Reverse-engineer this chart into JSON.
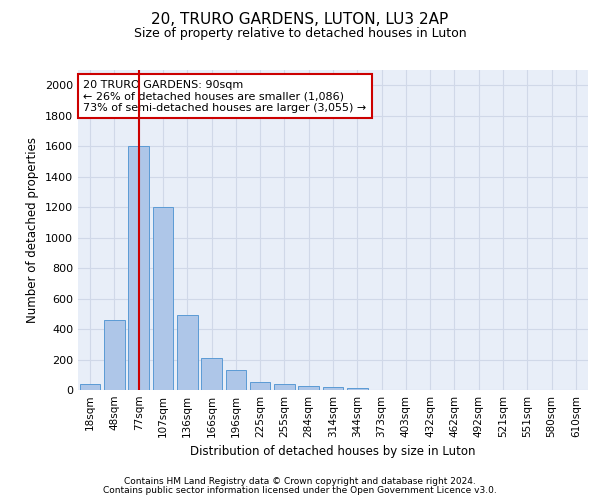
{
  "title": "20, TRURO GARDENS, LUTON, LU3 2AP",
  "subtitle": "Size of property relative to detached houses in Luton",
  "xlabel": "Distribution of detached houses by size in Luton",
  "ylabel": "Number of detached properties",
  "bar_labels": [
    "18sqm",
    "48sqm",
    "77sqm",
    "107sqm",
    "136sqm",
    "166sqm",
    "196sqm",
    "225sqm",
    "255sqm",
    "284sqm",
    "314sqm",
    "344sqm",
    "373sqm",
    "403sqm",
    "432sqm",
    "462sqm",
    "492sqm",
    "521sqm",
    "551sqm",
    "580sqm",
    "610sqm"
  ],
  "bar_values": [
    40,
    460,
    1600,
    1200,
    490,
    210,
    130,
    50,
    40,
    25,
    20,
    15,
    0,
    0,
    0,
    0,
    0,
    0,
    0,
    0,
    0
  ],
  "bar_color": "#aec6e8",
  "bar_edge_color": "#5b9bd5",
  "grid_color": "#d0d8e8",
  "bg_color": "#e8eef8",
  "ylim": [
    0,
    2100
  ],
  "yticks": [
    0,
    200,
    400,
    600,
    800,
    1000,
    1200,
    1400,
    1600,
    1800,
    2000
  ],
  "property_bar_index": 2,
  "annotation_text": "20 TRURO GARDENS: 90sqm\n← 26% of detached houses are smaller (1,086)\n73% of semi-detached houses are larger (3,055) →",
  "annotation_box_color": "#ffffff",
  "annotation_box_edge": "#cc0000",
  "red_line_color": "#cc0000",
  "footer_line1": "Contains HM Land Registry data © Crown copyright and database right 2024.",
  "footer_line2": "Contains public sector information licensed under the Open Government Licence v3.0."
}
